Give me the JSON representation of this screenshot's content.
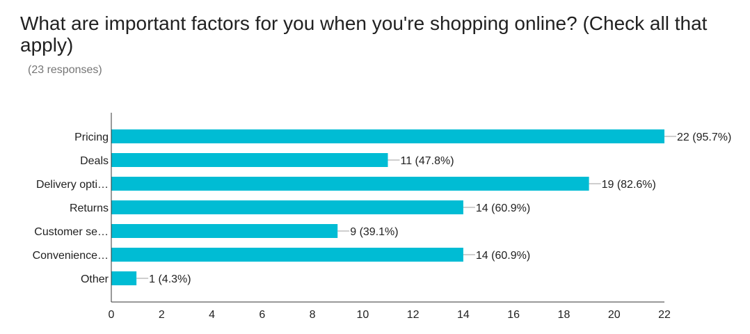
{
  "header": {
    "title": "What are important factors for you when you're shopping online? (Check all that apply)",
    "subtitle": "(23 responses)"
  },
  "colors": {
    "bar": "#00bcd4",
    "axis": "#333333",
    "text": "#212121",
    "muted": "#757575"
  },
  "chart_data": {
    "type": "bar",
    "orientation": "horizontal",
    "title": "What are important factors for you when you're shopping online? (Check all that apply)",
    "subtitle": "(23 responses)",
    "categories": [
      "Pricing",
      "Deals",
      "Delivery opti…",
      "Returns",
      "Customer se…",
      "Convenience…",
      "Other"
    ],
    "values": [
      22,
      11,
      19,
      14,
      9,
      14,
      1
    ],
    "data_labels": [
      "22 (95.7%)",
      "11 (47.8%)",
      "19 (82.6%)",
      "14 (60.9%)",
      "9 (39.1%)",
      "14 (60.9%)",
      "1 (4.3%)"
    ],
    "xticks": [
      0,
      2,
      4,
      6,
      8,
      10,
      12,
      14,
      16,
      18,
      20,
      22
    ],
    "xlim": [
      0,
      22
    ],
    "xlabel": "",
    "ylabel": "",
    "grid": false,
    "legend": "none"
  }
}
